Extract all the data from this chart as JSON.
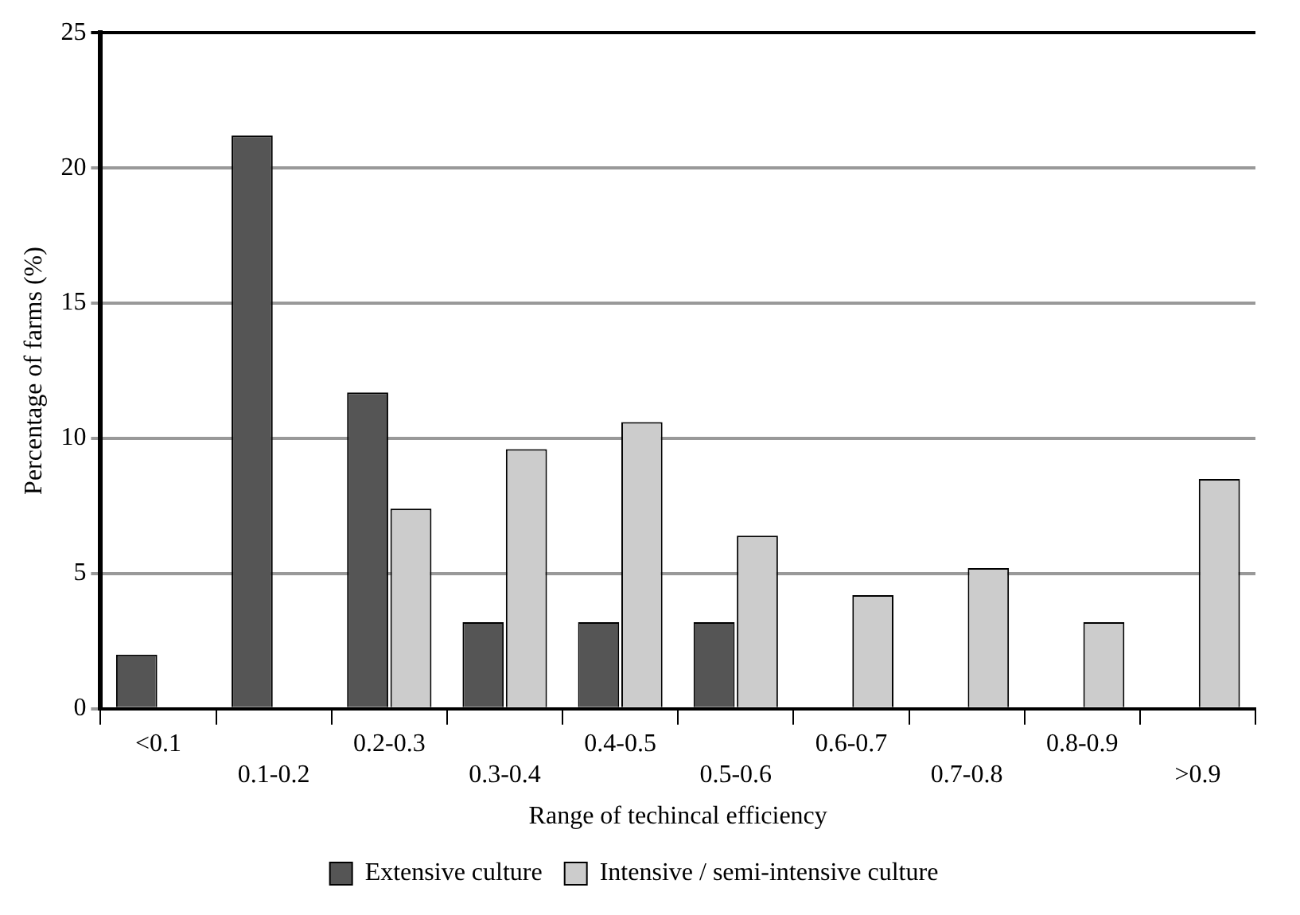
{
  "chart_data": {
    "type": "bar",
    "xlabel": "Range of techincal efficiency",
    "ylabel": "Percentage of farms (%)",
    "categories": [
      "<0.1",
      "0.1-0.2",
      "0.2-0.3",
      "0.3-0.4",
      "0.4-0.5",
      "0.5-0.6",
      "0.6-0.7",
      "0.7-0.8",
      "0.8-0.9",
      ">0.9"
    ],
    "series": [
      {
        "name": "Extensive culture",
        "color": "#555555",
        "values": [
          2.0,
          21.2,
          11.7,
          3.2,
          3.2,
          3.2,
          0,
          0,
          0,
          0
        ]
      },
      {
        "name": "Intensive / semi-intensive culture",
        "color": "#cccccc",
        "values": [
          0,
          0,
          7.4,
          9.6,
          10.6,
          6.4,
          4.2,
          5.2,
          3.2,
          8.5
        ]
      }
    ],
    "ylim": [
      0,
      25
    ],
    "yticks": [
      0,
      5,
      10,
      15,
      20,
      25
    ],
    "grid": "y",
    "legend": "bottom"
  }
}
